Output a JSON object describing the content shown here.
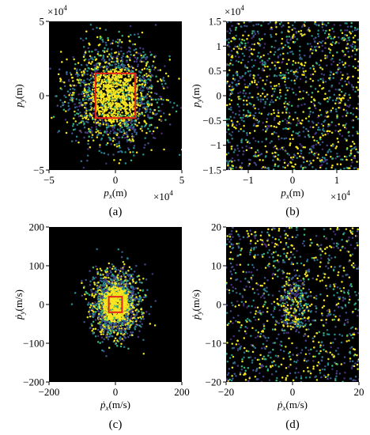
{
  "figure": {
    "background": "#ffffff",
    "plot_background": "#000000",
    "highlight_color": "#e8231a",
    "palette": [
      "#fde725",
      "#f2e51d",
      "#e0e21a",
      "#35b779",
      "#21918c",
      "#2c728e",
      "#3b528b",
      "#414487",
      "#472c7a"
    ]
  },
  "chart_data": [
    {
      "type": "scatter",
      "panel": "a",
      "caption": "(a)",
      "xlabel_sym": "p",
      "xlabel_sub": "x",
      "xlabel_unit": "(m)",
      "ylabel_sym": "p",
      "ylabel_sub": "y",
      "ylabel_unit": "(m)",
      "xlim": [
        -50000,
        50000
      ],
      "ylim": [
        -50000,
        50000
      ],
      "xticks": [
        -5,
        0,
        5
      ],
      "yticks": [
        -5,
        0,
        5
      ],
      "x_multiplier": {
        "base": "×10",
        "exp": "4"
      },
      "y_multiplier": {
        "base": "×10",
        "exp": "4"
      },
      "grid": false,
      "distribution": "gaussian",
      "sigma": [
        17000,
        17000
      ],
      "n_points": 1900,
      "seed": 11,
      "highlight_rect": {
        "x": [
          -15000,
          15000
        ],
        "y": [
          -15000,
          15000
        ]
      }
    },
    {
      "type": "scatter",
      "panel": "b",
      "caption": "(b)",
      "xlabel_sym": "p",
      "xlabel_sub": "x",
      "xlabel_unit": "(m)",
      "ylabel_sym": "p",
      "ylabel_sub": "y",
      "ylabel_unit": "(m)",
      "xlim": [
        -15000,
        15000
      ],
      "ylim": [
        -15000,
        15000
      ],
      "xticks": [
        -1,
        0,
        1
      ],
      "yticks": [
        -1.5,
        -1,
        -0.5,
        0,
        0.5,
        1,
        1.5
      ],
      "x_multiplier": {
        "base": "×10",
        "exp": "4"
      },
      "y_multiplier": {
        "base": "×10",
        "exp": "4"
      },
      "grid": false,
      "distribution": "uniform",
      "n_points": 1300,
      "seed": 23
    },
    {
      "type": "scatter",
      "panel": "c",
      "caption": "(c)",
      "xlabel_sym": "ṗ",
      "xlabel_sub": "x",
      "xlabel_unit": "(m/s)",
      "ylabel_sym": "ṗ",
      "ylabel_sub": "y",
      "ylabel_unit": "(m/s)",
      "xlim": [
        -200,
        200
      ],
      "ylim": [
        -200,
        200
      ],
      "xticks": [
        -200,
        0,
        200
      ],
      "yticks": [
        -200,
        -100,
        0,
        100,
        200
      ],
      "grid": false,
      "distribution": "gaussian",
      "sigma": [
        36,
        42
      ],
      "n_points": 1900,
      "seed": 37,
      "highlight_rect": {
        "x": [
          -20,
          20
        ],
        "y": [
          -20,
          20
        ]
      }
    },
    {
      "type": "scatter",
      "panel": "d",
      "caption": "(d)",
      "xlabel_sym": "ṗ",
      "xlabel_sub": "x",
      "xlabel_unit": "(m/s)",
      "ylabel_sym": "ṗ",
      "ylabel_sub": "y",
      "ylabel_unit": "(m/s)",
      "xlim": [
        -20,
        20
      ],
      "ylim": [
        -20,
        20
      ],
      "xticks": [
        -20,
        0,
        20
      ],
      "yticks": [
        -20,
        -10,
        0,
        10,
        20
      ],
      "grid": false,
      "distribution": "uniform_with_ring",
      "ring_radius": 3.2,
      "n_points": 1000,
      "ring_points": 260,
      "seed": 51
    }
  ]
}
